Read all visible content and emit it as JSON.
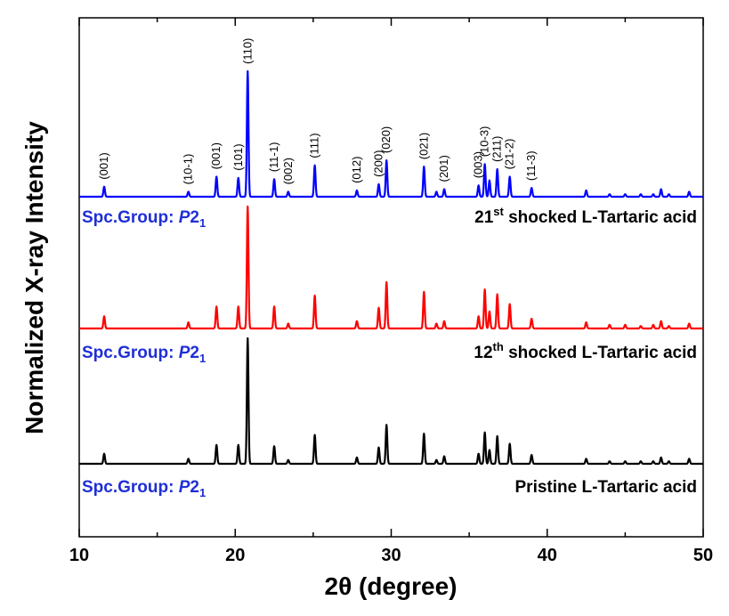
{
  "chart_data": {
    "type": "line",
    "xlabel": "2θ (degree)",
    "ylabel": "Normalized X-ray Intensity",
    "xlim": [
      10,
      50
    ],
    "xticks": [
      "10",
      "20",
      "30",
      "40",
      "50"
    ],
    "grid": false,
    "peak_index_labels": [
      {
        "hkl": "(001)",
        "x": 11.6
      },
      {
        "hkl": "(10-1)",
        "x": 17.0
      },
      {
        "hkl": "(001)",
        "x": 18.8
      },
      {
        "hkl": "(101)",
        "x": 20.2
      },
      {
        "hkl": "(110)",
        "x": 20.8
      },
      {
        "hkl": "(11-1)",
        "x": 22.5
      },
      {
        "hkl": "(002)",
        "x": 23.4
      },
      {
        "hkl": "(111)",
        "x": 25.1
      },
      {
        "hkl": "(012)",
        "x": 27.8
      },
      {
        "hkl": "(200)",
        "x": 29.2
      },
      {
        "hkl": "(020)",
        "x": 29.7
      },
      {
        "hkl": "(021)",
        "x": 32.1
      },
      {
        "hkl": "(201)",
        "x": 33.4
      },
      {
        "hkl": "(003)",
        "x": 35.6
      },
      {
        "hkl": "(10-3)",
        "x": 36.0
      },
      {
        "hkl": "(211)",
        "x": 36.8
      },
      {
        "hkl": "(21-2)",
        "x": 37.6
      },
      {
        "hkl": "(11-3)",
        "x": 39.0
      }
    ],
    "peaks": {
      "x": [
        11.6,
        17.0,
        18.8,
        20.2,
        20.8,
        22.5,
        23.4,
        25.1,
        27.8,
        29.2,
        29.7,
        32.1,
        32.9,
        33.4,
        35.6,
        36.0,
        36.3,
        36.8,
        37.6,
        39.0,
        42.5,
        44.0,
        45.0,
        46.0,
        46.8,
        47.3,
        47.8,
        49.1
      ],
      "unit": "relative intensity"
    },
    "series": [
      {
        "name": "21st shocked L-Tartaric acid",
        "name_main": "21",
        "name_sup": "st",
        "name_rest": " shocked L-Tartaric acid",
        "space_group_prefix": "Spc.Group: ",
        "space_group_italic": "P",
        "space_group_main": "2",
        "space_group_sub": "1",
        "color": "#0000ff",
        "intensities": [
          0.08,
          0.04,
          0.16,
          0.15,
          1.0,
          0.14,
          0.04,
          0.25,
          0.05,
          0.1,
          0.29,
          0.24,
          0.04,
          0.06,
          0.09,
          0.26,
          0.13,
          0.22,
          0.16,
          0.07,
          0.05,
          0.02,
          0.02,
          0.02,
          0.02,
          0.06,
          0.02,
          0.04
        ]
      },
      {
        "name": "12th shocked L-Tartaric acid",
        "name_main": "12",
        "name_sup": "th",
        "name_rest": " shocked L-Tartaric acid",
        "space_group_prefix": "Spc.Group: ",
        "space_group_italic": "P",
        "space_group_main": "2",
        "space_group_sub": "1",
        "color": "#ff0000",
        "intensities": [
          0.1,
          0.05,
          0.18,
          0.18,
          1.0,
          0.18,
          0.04,
          0.27,
          0.06,
          0.17,
          0.38,
          0.3,
          0.04,
          0.06,
          0.1,
          0.32,
          0.14,
          0.28,
          0.2,
          0.08,
          0.05,
          0.03,
          0.03,
          0.02,
          0.03,
          0.06,
          0.02,
          0.04
        ]
      },
      {
        "name": "Pristine L-Tartaric acid",
        "name_main": "Pristine L-Tartaric acid",
        "name_sup": "",
        "name_rest": "",
        "space_group_prefix": "Spc.Group: ",
        "space_group_italic": "P",
        "space_group_main": "2",
        "space_group_sub": "1",
        "color": "#000000",
        "intensities": [
          0.08,
          0.04,
          0.15,
          0.15,
          1.0,
          0.14,
          0.03,
          0.23,
          0.05,
          0.13,
          0.31,
          0.24,
          0.03,
          0.06,
          0.08,
          0.25,
          0.11,
          0.22,
          0.16,
          0.07,
          0.04,
          0.02,
          0.02,
          0.02,
          0.02,
          0.05,
          0.02,
          0.04
        ]
      }
    ]
  },
  "colors": {
    "label_blue": "#1f2fd6",
    "axis": "#000000"
  }
}
